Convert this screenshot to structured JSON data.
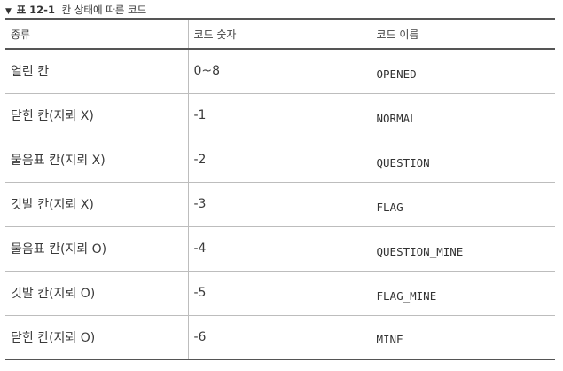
{
  "caption": {
    "marker": "▼",
    "number": "표 12-1",
    "text": "칸 상태에 따른 코드"
  },
  "table": {
    "headers": [
      "종류",
      "코드 숫자",
      "코드 이름"
    ],
    "rows": [
      [
        "열린 칸",
        "0~8",
        "OPENED"
      ],
      [
        "닫힌 칸(지뢰 X)",
        "-1",
        "NORMAL"
      ],
      [
        "물음표 칸(지뢰 X)",
        "-2",
        "QUESTION"
      ],
      [
        "깃발 칸(지뢰 X)",
        "-3",
        "FLAG"
      ],
      [
        "물음표 칸(지뢰 O)",
        "-4",
        "QUESTION_MINE"
      ],
      [
        "깃발 칸(지뢰 O)",
        "-5",
        "FLAG_MINE"
      ],
      [
        "닫힌 칸(지뢰 O)",
        "-6",
        "MINE"
      ]
    ]
  }
}
